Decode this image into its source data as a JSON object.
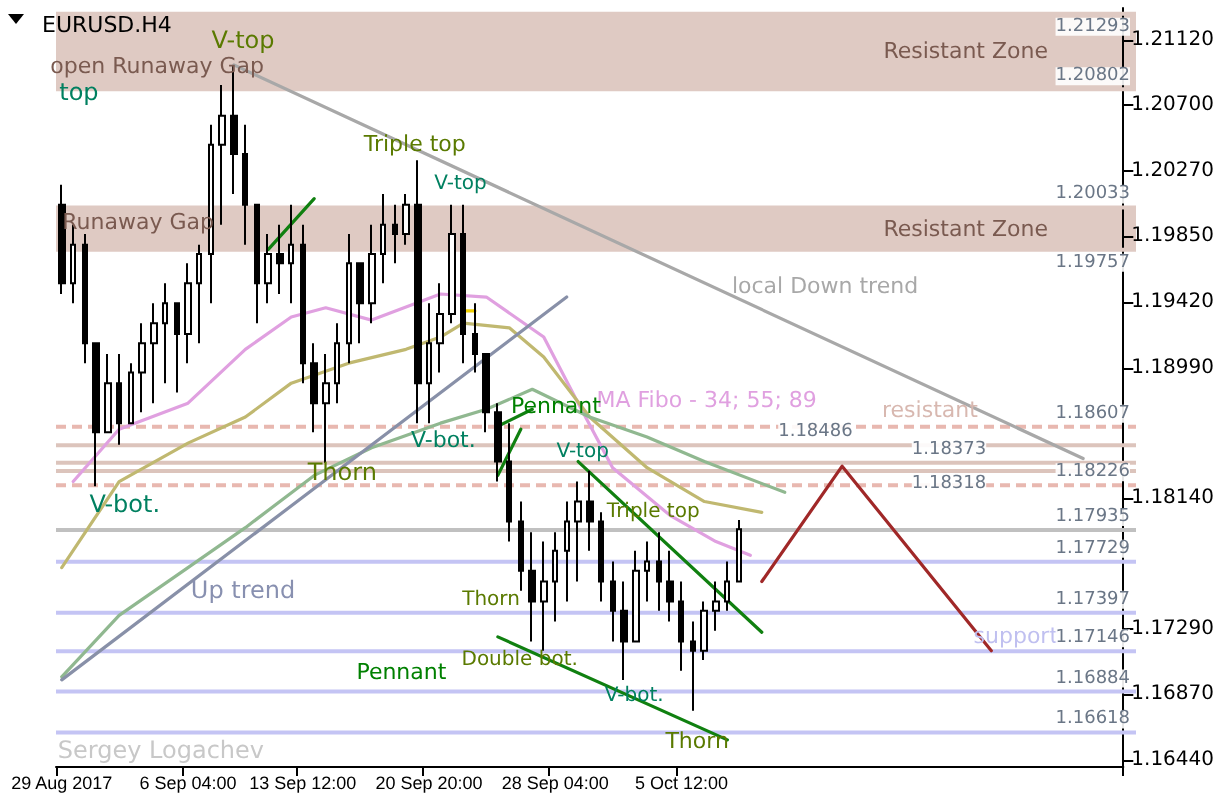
{
  "chart_data": {
    "type": "candlestick",
    "title": "EURUSD.H4",
    "categories": [
      "29 Aug 2017",
      null,
      null,
      null,
      null,
      null,
      null,
      null,
      null,
      null,
      null,
      "6 Sep 04:00",
      null,
      null,
      null,
      null,
      null,
      null,
      null,
      null,
      null,
      "13 Sep 12:00",
      null,
      null,
      null,
      null,
      null,
      null,
      null,
      null,
      null,
      null,
      "20 Sep 20:00",
      null,
      null,
      null,
      null,
      null,
      null,
      null,
      null,
      null,
      null,
      "28 Sep 04:00",
      null,
      null,
      null,
      null,
      null,
      null,
      null,
      null,
      null,
      null,
      "5 Oct 12:00",
      null,
      null,
      null,
      null,
      null,
      null,
      null,
      null,
      null,
      null,
      null,
      null,
      null,
      null,
      null,
      null,
      null,
      null,
      null,
      null,
      null,
      null,
      null,
      null,
      null,
      null,
      null,
      null,
      null,
      null,
      null,
      null,
      null,
      null,
      null,
      null,
      null,
      null
    ],
    "ohlc": [
      [
        1.2005,
        1.2018,
        1.1947,
        1.1954
      ],
      [
        1.1954,
        1.1992,
        1.1941,
        1.1979
      ],
      [
        1.1979,
        1.1986,
        1.1902,
        1.1915
      ],
      [
        1.1915,
        1.1915,
        1.1822,
        1.1857
      ],
      [
        1.1857,
        1.1908,
        1.1857,
        1.1889
      ],
      [
        1.1889,
        1.1908,
        1.1849,
        1.1863
      ],
      [
        1.1863,
        1.1902,
        1.1863,
        1.1896
      ],
      [
        1.1896,
        1.1928,
        1.187,
        1.1915
      ],
      [
        1.1915,
        1.1941,
        1.1876,
        1.1928
      ],
      [
        1.1928,
        1.1954,
        1.1889,
        1.1941
      ],
      [
        1.1941,
        1.1941,
        1.1883,
        1.1921
      ],
      [
        1.1921,
        1.1967,
        1.1902,
        1.1954
      ],
      [
        1.1954,
        1.1979,
        1.1915,
        1.1973
      ],
      [
        1.1973,
        1.2057,
        1.1941,
        1.2044
      ],
      [
        1.2044,
        1.2083,
        1.1992,
        1.2063
      ],
      [
        1.2063,
        1.2096,
        1.2012,
        1.2038
      ],
      [
        1.2038,
        1.2057,
        1.1979,
        1.2005
      ],
      [
        1.2005,
        1.2005,
        1.1928,
        1.1954
      ],
      [
        1.1954,
        1.1986,
        1.1941,
        1.1973
      ],
      [
        1.1973,
        1.1992,
        1.1947,
        1.1967
      ],
      [
        1.1967,
        1.2005,
        1.1941,
        1.1979
      ],
      [
        1.1979,
        1.1992,
        1.1889,
        1.1902
      ],
      [
        1.1902,
        1.1915,
        1.1857,
        1.1876
      ],
      [
        1.1876,
        1.1908,
        1.1837,
        1.1889
      ],
      [
        1.1889,
        1.1928,
        1.1876,
        1.1915
      ],
      [
        1.1915,
        1.1986,
        1.1902,
        1.1967
      ],
      [
        1.1967,
        1.1967,
        1.1915,
        1.1941
      ],
      [
        1.1941,
        1.1992,
        1.1928,
        1.1973
      ],
      [
        1.1973,
        1.2012,
        1.1954,
        1.1992
      ],
      [
        1.1992,
        1.2005,
        1.1967,
        1.1986
      ],
      [
        1.1986,
        1.2012,
        1.1979,
        1.2005
      ],
      [
        1.2005,
        1.2034,
        1.1863,
        1.1889
      ],
      [
        1.1889,
        1.1941,
        1.1863,
        1.1915
      ],
      [
        1.1915,
        1.1954,
        1.1896,
        1.1934
      ],
      [
        1.1934,
        1.2005,
        1.1928,
        1.1986
      ],
      [
        1.1986,
        1.2005,
        1.1902,
        1.1921
      ],
      [
        1.1921,
        1.1941,
        1.1896,
        1.1908
      ],
      [
        1.1908,
        1.1908,
        1.1857,
        1.187
      ],
      [
        1.187,
        1.1876,
        1.1825,
        1.1838
      ],
      [
        1.1838,
        1.1863,
        1.1786,
        1.1799
      ],
      [
        1.1799,
        1.1812,
        1.1754,
        1.1767
      ],
      [
        1.1767,
        1.1792,
        1.1721,
        1.1747
      ],
      [
        1.1747,
        1.1786,
        1.1715,
        1.176
      ],
      [
        1.176,
        1.1792,
        1.1734,
        1.178
      ],
      [
        1.178,
        1.1812,
        1.1747,
        1.1799
      ],
      [
        1.1799,
        1.1825,
        1.176,
        1.1812
      ],
      [
        1.1812,
        1.1832,
        1.178,
        1.1799
      ],
      [
        1.1799,
        1.1805,
        1.1747,
        1.176
      ],
      [
        1.176,
        1.1773,
        1.1721,
        1.1741
      ],
      [
        1.1741,
        1.176,
        1.1696,
        1.1721
      ],
      [
        1.1721,
        1.178,
        1.1721,
        1.1767
      ],
      [
        1.1767,
        1.1786,
        1.1747,
        1.1773
      ],
      [
        1.1773,
        1.1792,
        1.1741,
        1.176
      ],
      [
        1.176,
        1.178,
        1.1734,
        1.1747
      ],
      [
        1.1747,
        1.176,
        1.1702,
        1.1721
      ],
      [
        1.1721,
        1.1734,
        1.1676,
        1.1715
      ],
      [
        1.1715,
        1.1747,
        1.1709,
        1.1741
      ],
      [
        1.1741,
        1.176,
        1.1728,
        1.1747
      ],
      [
        1.1747,
        1.1773,
        1.1741,
        1.176
      ],
      [
        1.176,
        1.18,
        1.176,
        1.1794
      ],
      null,
      null,
      null,
      null,
      null,
      null,
      null,
      null,
      null,
      null,
      null,
      null,
      null,
      null,
      null,
      null,
      null,
      null,
      null,
      null,
      null,
      null,
      null,
      null,
      null,
      null,
      null,
      null,
      null,
      null,
      null,
      null,
      null
    ],
    "series": [
      {
        "type": "line",
        "color": "#e0a0e0",
        "values": [
          null,
          1.1825,
          null,
          null,
          null,
          1.1859,
          null,
          null,
          null,
          null,
          null,
          1.1876,
          null,
          null,
          null,
          null,
          1.1911,
          null,
          null,
          null,
          1.1932,
          null,
          null,
          1.1938,
          null,
          null,
          null,
          1.193,
          null,
          null,
          null,
          null,
          null,
          1.1947,
          null,
          null,
          null,
          1.1945,
          null,
          null,
          null,
          null,
          1.1919,
          null,
          null,
          1.1876,
          null,
          null,
          1.1834,
          null,
          null,
          null,
          null,
          1.1803,
          null,
          null,
          null,
          1.1786,
          null,
          null,
          1.1777,
          null,
          null,
          null,
          null,
          null,
          null,
          null,
          null,
          null,
          null,
          null,
          null,
          null,
          null,
          null,
          null,
          null,
          null,
          null,
          null,
          null,
          null,
          null,
          null,
          null,
          null,
          null,
          null,
          null,
          null,
          null,
          null
        ]
      },
      {
        "type": "line",
        "color": "#c0b870",
        "values": [
          1.1769,
          null,
          null,
          null,
          null,
          1.1825,
          null,
          null,
          null,
          null,
          null,
          1.185,
          null,
          null,
          null,
          null,
          1.1867,
          null,
          null,
          null,
          1.1889,
          null,
          null,
          null,
          null,
          1.1902,
          null,
          null,
          null,
          null,
          1.1911,
          null,
          null,
          1.1919,
          null,
          1.1928,
          null,
          null,
          null,
          1.1925,
          null,
          null,
          1.1906,
          null,
          null,
          null,
          1.1867,
          null,
          null,
          null,
          null,
          1.1834,
          null,
          null,
          null,
          null,
          1.1812,
          null,
          null,
          null,
          null,
          1.1805,
          null,
          null,
          null,
          null,
          null,
          null,
          null,
          null,
          null,
          null,
          null,
          null,
          null,
          null,
          null,
          null,
          null,
          null,
          null,
          null,
          null,
          null,
          null,
          null,
          null,
          null,
          null,
          null,
          null,
          null,
          null
        ]
      },
      {
        "type": "line",
        "color": "#90b890",
        "values": [
          1.1698,
          null,
          null,
          null,
          null,
          1.1738,
          null,
          null,
          null,
          null,
          null,
          1.1769,
          null,
          null,
          null,
          null,
          1.1795,
          null,
          null,
          null,
          null,
          null,
          1.1829,
          null,
          null,
          null,
          null,
          1.1847,
          null,
          null,
          null,
          null,
          null,
          1.1863,
          null,
          null,
          null,
          1.1872,
          null,
          null,
          null,
          1.1885,
          null,
          null,
          null,
          null,
          1.1867,
          null,
          null,
          null,
          null,
          1.1854,
          null,
          null,
          null,
          null,
          1.1838,
          null,
          null,
          null,
          null,
          null,
          null,
          1.1818,
          null,
          null,
          null,
          null,
          null,
          null,
          null,
          null,
          null,
          null,
          null,
          null,
          null,
          null,
          null,
          null,
          null,
          null,
          null,
          null,
          null,
          null,
          null,
          null,
          null,
          null,
          null,
          null,
          null
        ]
      },
      {
        "type": "line",
        "color": "#a8a8a8",
        "values": [
          null,
          null,
          null,
          null,
          null,
          null,
          null,
          null,
          null,
          null,
          null,
          null,
          null,
          null,
          null,
          1.2096,
          null,
          null,
          null,
          null,
          null,
          null,
          null,
          null,
          null,
          null,
          null,
          null,
          null,
          null,
          null,
          null,
          null,
          null,
          null,
          null,
          null,
          null,
          null,
          null,
          null,
          null,
          null,
          null,
          null,
          null,
          null,
          null,
          null,
          null,
          null,
          null,
          null,
          null,
          null,
          null,
          null,
          null,
          null,
          null,
          null,
          null,
          null,
          null,
          null,
          null,
          null,
          null,
          null,
          null,
          null,
          null,
          null,
          null,
          null,
          null,
          null,
          null,
          null,
          null,
          null,
          null,
          null,
          null,
          null,
          null,
          null,
          null,
          null,
          1.184,
          null,
          null,
          null
        ]
      },
      {
        "type": "line",
        "color": "#8890a8",
        "values": [
          1.1696,
          null,
          null,
          null,
          null,
          null,
          null,
          null,
          null,
          null,
          null,
          null,
          null,
          null,
          null,
          null,
          null,
          null,
          null,
          null,
          null,
          null,
          null,
          null,
          null,
          null,
          null,
          null,
          null,
          null,
          null,
          null,
          null,
          null,
          null,
          null,
          null,
          null,
          null,
          null,
          null,
          null,
          null,
          null,
          1.1945,
          null,
          null,
          null,
          null,
          null,
          null,
          null,
          null,
          null,
          null,
          null,
          null,
          null,
          null,
          null,
          null,
          null,
          null,
          null,
          null,
          null,
          null,
          null,
          null,
          null,
          null,
          null,
          null,
          null,
          null,
          null,
          null,
          null,
          null,
          null,
          null,
          null,
          null,
          null,
          null,
          null,
          null,
          null,
          null,
          null,
          null,
          null,
          null
        ]
      },
      {
        "type": "line",
        "color": "#108010",
        "values": [
          null,
          null,
          null,
          null,
          null,
          null,
          null,
          null,
          null,
          null,
          null,
          null,
          null,
          null,
          null,
          null,
          null,
          null,
          1.1976,
          null,
          null,
          null,
          1.2009,
          null,
          null,
          null,
          null,
          null,
          null,
          null,
          null,
          null,
          null,
          null,
          null,
          null,
          null,
          null,
          null,
          null,
          null,
          null,
          null,
          null,
          null,
          null,
          null,
          null,
          null,
          null,
          null,
          null,
          null,
          null,
          null,
          null,
          null,
          null,
          null,
          null,
          null,
          null,
          null,
          null,
          null,
          null,
          null,
          null,
          null,
          null,
          null,
          null,
          null,
          null,
          null,
          null,
          null,
          null,
          null,
          null,
          null,
          null,
          null,
          null,
          null,
          null,
          null,
          null,
          null,
          null,
          null,
          null,
          null
        ]
      },
      {
        "type": "line",
        "color": "#108010",
        "values": [
          null,
          null,
          null,
          null,
          null,
          null,
          null,
          null,
          null,
          null,
          null,
          null,
          null,
          null,
          null,
          null,
          null,
          null,
          null,
          null,
          null,
          null,
          null,
          null,
          null,
          null,
          null,
          null,
          null,
          null,
          null,
          null,
          null,
          null,
          null,
          null,
          null,
          null,
          1.1861,
          null,
          null,
          1.1872,
          null,
          null,
          null,
          null,
          null,
          null,
          null,
          null,
          null,
          null,
          null,
          null,
          null,
          null,
          null,
          null,
          null,
          null,
          null,
          null,
          null,
          null,
          null,
          null,
          null,
          null,
          null,
          null,
          null,
          null,
          null,
          null,
          null,
          null,
          null,
          null,
          null,
          null,
          null,
          null,
          null,
          null,
          null,
          null,
          null,
          null,
          null,
          null,
          null,
          null,
          null
        ]
      },
      {
        "type": "line",
        "color": "#108010",
        "values": [
          null,
          null,
          null,
          null,
          null,
          null,
          null,
          null,
          null,
          null,
          null,
          null,
          null,
          null,
          null,
          null,
          null,
          null,
          null,
          null,
          null,
          null,
          null,
          null,
          null,
          null,
          null,
          null,
          null,
          null,
          null,
          null,
          null,
          null,
          null,
          null,
          null,
          null,
          1.1829,
          null,
          1.1859,
          null,
          null,
          null,
          null,
          null,
          null,
          null,
          null,
          null,
          null,
          null,
          null,
          null,
          null,
          null,
          null,
          null,
          null,
          null,
          null,
          null,
          null,
          null,
          null,
          null,
          null,
          null,
          null,
          null,
          null,
          null,
          null,
          null,
          null,
          null,
          null,
          null,
          null,
          null,
          null,
          null,
          null,
          null,
          null,
          null,
          null,
          null,
          null,
          null,
          null,
          null,
          null
        ]
      },
      {
        "type": "line",
        "color": "#108010",
        "values": [
          null,
          null,
          null,
          null,
          null,
          null,
          null,
          null,
          null,
          null,
          null,
          null,
          null,
          null,
          null,
          null,
          null,
          null,
          null,
          null,
          null,
          null,
          null,
          null,
          null,
          null,
          null,
          null,
          null,
          null,
          null,
          null,
          null,
          null,
          null,
          null,
          null,
          null,
          null,
          null,
          null,
          null,
          null,
          null,
          null,
          1.1838,
          null,
          null,
          null,
          null,
          null,
          null,
          null,
          null,
          null,
          null,
          null,
          null,
          null,
          null,
          null,
          1.1727,
          null,
          null,
          null,
          null,
          null,
          null,
          null,
          null,
          null,
          null,
          null,
          null,
          null,
          null,
          null,
          null,
          null,
          null,
          null,
          null,
          null,
          null,
          null,
          null,
          null,
          null,
          null,
          null,
          null,
          null,
          null
        ]
      },
      {
        "type": "line",
        "color": "#108010",
        "values": [
          null,
          null,
          null,
          null,
          null,
          null,
          null,
          null,
          null,
          null,
          null,
          null,
          null,
          null,
          null,
          null,
          null,
          null,
          null,
          null,
          null,
          null,
          null,
          null,
          null,
          null,
          null,
          null,
          null,
          null,
          null,
          null,
          null,
          null,
          null,
          null,
          null,
          null,
          1.1724,
          null,
          null,
          null,
          null,
          null,
          null,
          null,
          null,
          null,
          null,
          null,
          null,
          null,
          null,
          null,
          null,
          null,
          null,
          null,
          1.1657,
          null,
          null,
          null,
          null,
          null,
          null,
          null,
          null,
          null,
          null,
          null,
          null,
          null,
          null,
          null,
          null,
          null,
          null,
          null,
          null,
          null,
          null,
          null,
          null,
          null,
          null,
          null,
          null,
          null,
          null,
          null,
          null,
          null,
          null
        ]
      },
      {
        "type": "line",
        "color": "#f0d000",
        "values": [
          null,
          null,
          null,
          null,
          null,
          null,
          null,
          null,
          null,
          null,
          null,
          null,
          null,
          null,
          null,
          null,
          null,
          null,
          null,
          null,
          null,
          null,
          null,
          null,
          null,
          null,
          null,
          null,
          null,
          null,
          null,
          null,
          null,
          null,
          null,
          1.1936,
          1.1936,
          null,
          null,
          null,
          null,
          null,
          null,
          null,
          null,
          null,
          null,
          null,
          null,
          null,
          null,
          null,
          null,
          null,
          null,
          null,
          null,
          null,
          null,
          null,
          null,
          null,
          null,
          null,
          null,
          null,
          null,
          null,
          null,
          null,
          null,
          null,
          null,
          null,
          null,
          null,
          null,
          null,
          null,
          null,
          null,
          null,
          null,
          null,
          null,
          null,
          null,
          null,
          null,
          null,
          null,
          null,
          null
        ]
      },
      {
        "type": "line",
        "color": "#a02828",
        "values": [
          null,
          null,
          null,
          null,
          null,
          null,
          null,
          null,
          null,
          null,
          null,
          null,
          null,
          null,
          null,
          null,
          null,
          null,
          null,
          null,
          null,
          null,
          null,
          null,
          null,
          null,
          null,
          null,
          null,
          null,
          null,
          null,
          null,
          null,
          null,
          null,
          null,
          null,
          null,
          null,
          null,
          null,
          null,
          null,
          null,
          null,
          null,
          null,
          null,
          null,
          null,
          null,
          null,
          null,
          null,
          null,
          null,
          null,
          null,
          null,
          null,
          1.176,
          null,
          null,
          null,
          null,
          null,
          null,
          1.1835,
          null,
          null,
          null,
          null,
          null,
          null,
          null,
          null,
          null,
          null,
          null,
          null,
          1.1715,
          null,
          null,
          null,
          null,
          null,
          null,
          null,
          null,
          null,
          null,
          null
        ]
      }
    ],
    "ylim": [
      1.164,
      1.2133
    ],
    "yticks": [
      {
        "value": 1.2112,
        "label": "1.21120"
      },
      {
        "value": 1.207,
        "label": "1.20700"
      },
      {
        "value": 1.2027,
        "label": "1.20270"
      },
      {
        "value": 1.1985,
        "label": "1.19850"
      },
      {
        "value": 1.1942,
        "label": "1.19420"
      },
      {
        "value": 1.1899,
        "label": "1.18990"
      },
      {
        "value": 1.1814,
        "label": "1.18140"
      },
      {
        "value": 1.1729,
        "label": "1.17290"
      },
      {
        "value": 1.1687,
        "label": "1.16870"
      },
      {
        "value": 1.1644,
        "label": "1.16440"
      }
    ],
    "bands": [
      {
        "axis": "y",
        "from": 1.20802,
        "to": 1.21293,
        "label": "Resistant Zone",
        "color": "#dfcac3"
      },
      {
        "axis": "y",
        "from": 1.19757,
        "to": 1.20033,
        "label": "Resistant Zone",
        "color": "#dfcac3"
      }
    ],
    "ref_lines": [
      {
        "axis": "y",
        "value": 1.21293,
        "label": "1.21293",
        "color": "#dfcac3"
      },
      {
        "axis": "y",
        "value": 1.20802,
        "label": "1.20802",
        "color": "#dfcac3"
      },
      {
        "axis": "y",
        "value": 1.20033,
        "label": "1.20033",
        "color": "#dfcac3"
      },
      {
        "axis": "y",
        "value": 1.19757,
        "label": "1.19757",
        "color": "#dfcac3"
      },
      {
        "axis": "y",
        "value": 1.18607,
        "label": "1.18607",
        "color": "#e8b8b0",
        "line_style": "dashed"
      },
      {
        "axis": "y",
        "value": 1.18486,
        "label": "1.18486",
        "color": "#dcc4bc"
      },
      {
        "axis": "y",
        "value": 1.18373,
        "label": "1.18373",
        "color": "#dcc4bc"
      },
      {
        "axis": "y",
        "value": 1.18318,
        "label": "1.18318",
        "color": "#dcc4bc"
      },
      {
        "axis": "y",
        "value": 1.18226,
        "label": "1.18226",
        "color": "#e8b8b0",
        "line_style": "dashed"
      },
      {
        "axis": "y",
        "value": 1.17935,
        "label": "1.17935",
        "color": "#c0c0c0"
      },
      {
        "axis": "y",
        "value": 1.17729,
        "label": "1.17729",
        "color": "#c4c4f4"
      },
      {
        "axis": "y",
        "value": 1.17397,
        "label": "1.17397",
        "color": "#c4c4f4"
      },
      {
        "axis": "y",
        "value": 1.17146,
        "label": "1.17146",
        "color": "#c4c4f4"
      },
      {
        "axis": "y",
        "value": 1.16884,
        "label": "1.16884",
        "color": "#c4c4f4"
      },
      {
        "axis": "y",
        "value": 1.16618,
        "label": "1.16618",
        "color": "#c4c4f4"
      }
    ],
    "annotations": [
      "open Runaway Gap",
      "V-top",
      "top",
      "Triple top",
      "V-top",
      "Runaway Gap",
      "local Down trend",
      "MA Fibo - 34; 55; 89",
      {
        "text": "Pennant",
        "y": 1.1874
      },
      "V-bot.",
      "V-bot.",
      "Thorn",
      "V-top",
      "Triple top",
      "Up trend",
      "Thorn",
      "Double bot.",
      "Pennant",
      "V-bot.",
      {
        "text": "Thorn",
        "y": 1.1656
      },
      "Sergey Logachev",
      "resistant",
      "support"
    ]
  }
}
